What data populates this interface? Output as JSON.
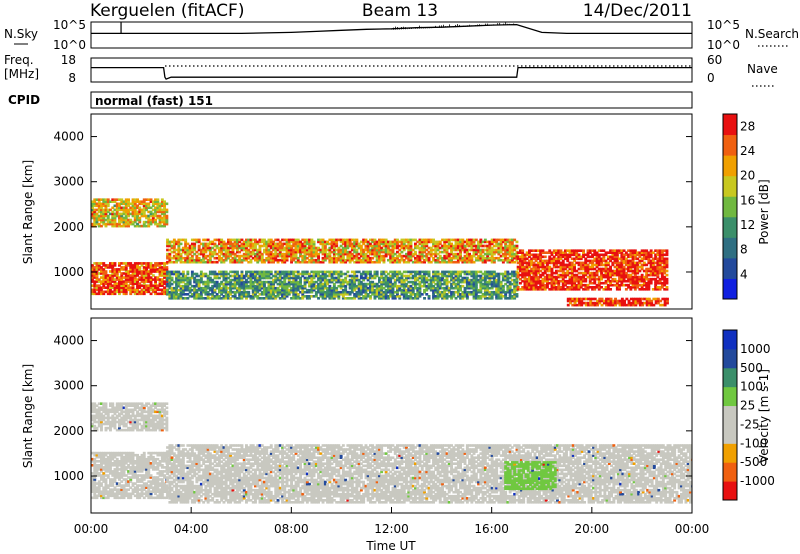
{
  "header": {
    "station": "Kerguelen (fitACF)",
    "beam": "Beam 13",
    "date": "14/Dec/2011"
  },
  "noise_panel": {
    "left_label": "N.Sky",
    "right_label": "N.Search",
    "left_ticks": [
      "10^5",
      "10^0"
    ],
    "right_ticks": [
      "10^5",
      "10^0"
    ]
  },
  "freq_panel": {
    "left_label_1": "Freq.",
    "left_label_2": "[MHz]",
    "right_label": "Nave",
    "left_ticks": [
      "18",
      "8"
    ],
    "right_ticks": [
      "60",
      "0"
    ]
  },
  "cpid": {
    "label": "CPID",
    "value": "normal (fast) 151"
  },
  "colors": {
    "power_scale": [
      "#1020e0",
      "#234a9c",
      "#2f6f82",
      "#3b8f6a",
      "#70b840",
      "#c8c820",
      "#f0a000",
      "#f06010",
      "#e81010"
    ],
    "velocity_scale": [
      "#e81010",
      "#f06010",
      "#f0a000",
      "#c8c8c0",
      "#c8c8c0",
      "#70c840",
      "#3b8f6a",
      "#234a9c",
      "#1030c0"
    ]
  },
  "chart_data": [
    {
      "type": "line",
      "panel": "noise",
      "x": [
        0,
        1,
        2,
        3,
        4,
        5,
        6,
        7,
        8,
        9,
        10,
        11,
        12,
        13,
        14,
        15,
        16,
        17,
        18,
        19,
        20,
        21,
        22,
        23,
        24
      ],
      "series": [
        {
          "name": "N.Sky",
          "values": [
            2.8,
            2.8,
            2.8,
            2.8,
            2.8,
            2.8,
            2.8,
            2.9,
            3.0,
            3.2,
            3.4,
            3.6,
            3.7,
            3.9,
            4.0,
            4.2,
            4.4,
            4.5,
            3.0,
            2.8,
            2.8,
            2.8,
            2.8,
            2.8,
            2.8
          ]
        }
      ],
      "ylim": [
        0,
        5
      ],
      "ytick_labels": [
        "10^0",
        "10^5"
      ]
    },
    {
      "type": "line",
      "panel": "frequency",
      "x": [
        0,
        2.9,
        2.95,
        3.0,
        3.2,
        3.4,
        17.0,
        17.05,
        24
      ],
      "series": [
        {
          "name": "Freq. [MHz]",
          "values": [
            14.0,
            14.0,
            10.0,
            9.2,
            10.0,
            10.0,
            10.0,
            14.0,
            14.0
          ]
        }
      ],
      "ylim": [
        8,
        18
      ],
      "ytick_labels": [
        "8",
        "18"
      ]
    },
    {
      "type": "heatmap",
      "panel": "power",
      "xlabel": "",
      "ylabel": "Slant Range [km]",
      "x_range_hours": [
        0,
        24
      ],
      "ylim": [
        180,
        4500
      ],
      "y_ticks": [
        1000,
        2000,
        3000,
        4000
      ],
      "colorbar": {
        "label": "Power [dB]",
        "ticks": [
          4,
          8,
          12,
          16,
          20,
          24,
          28
        ],
        "range": [
          0,
          30
        ]
      },
      "echo_bands": [
        {
          "t": [
            0,
            3
          ],
          "range": [
            2000,
            2600
          ],
          "value": 20
        },
        {
          "t": [
            0,
            3
          ],
          "range": [
            500,
            1200
          ],
          "value": 26
        },
        {
          "t": [
            3,
            17
          ],
          "range": [
            1200,
            1700
          ],
          "value": 22
        },
        {
          "t": [
            3,
            17
          ],
          "range": [
            400,
            1000
          ],
          "value": 12
        },
        {
          "t": [
            17,
            23
          ],
          "range": [
            600,
            1500
          ],
          "value": 28
        },
        {
          "t": [
            19,
            23
          ],
          "range": [
            250,
            400
          ],
          "value": 28
        }
      ]
    },
    {
      "type": "heatmap",
      "panel": "velocity",
      "xlabel": "Time UT",
      "ylabel": "Slant Range [km]",
      "x_range_hours": [
        0,
        24
      ],
      "ylim": [
        180,
        4500
      ],
      "y_ticks": [
        1000,
        2000,
        3000,
        4000
      ],
      "x_tick_labels": [
        "00:00",
        "04:00",
        "08:00",
        "12:00",
        "16:00",
        "20:00",
        "00:00"
      ],
      "colorbar": {
        "label": "Velocity [m s-1]",
        "ticks": [
          "-1000",
          "-500",
          "-100",
          "-25",
          "25",
          "100",
          "500",
          "1000"
        ]
      },
      "echo_bands": [
        {
          "t": [
            0,
            3
          ],
          "range": [
            2000,
            2600
          ],
          "value": 0
        },
        {
          "t": [
            0,
            3
          ],
          "range": [
            500,
            1500
          ],
          "value": 0
        },
        {
          "t": [
            3,
            24
          ],
          "range": [
            400,
            1700
          ],
          "value": 0
        },
        {
          "t": [
            16.5,
            18.5
          ],
          "range": [
            700,
            1300
          ],
          "value": 150
        }
      ]
    }
  ]
}
